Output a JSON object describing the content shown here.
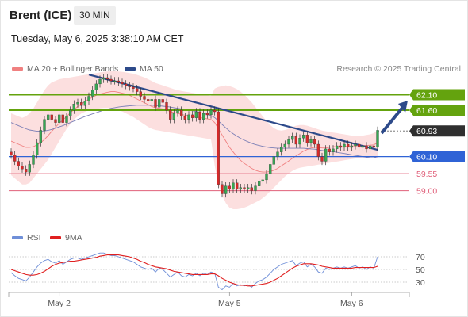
{
  "header": {
    "title": "Brent (ICE)",
    "interval": "30 MIN",
    "datetime": "Tuesday, May 6, 2025 3:38:10 AM CET"
  },
  "legend": {
    "ma20": "MA 20 + Bollinger Bands",
    "ma50": "MA 50",
    "rsi": "RSI",
    "rsi_ma": "9MA"
  },
  "copyright": "Research © 2025 Trading Central",
  "colors": {
    "bollinger_fill": "#fbd9d9",
    "ma20": "#f08080",
    "ma50": "#7b7fb6",
    "trendline": "#2d4a8a",
    "resistance": "#64a30e",
    "support_current": "#2f63d6",
    "support": "#e0607a",
    "candle_up": "#36a853",
    "candle_down": "#d42a2a",
    "price_tag": "#2f2f2f",
    "rsi": "#6f8fd8",
    "rsi_ma": "#e02020"
  },
  "chart_data": {
    "type": "candlestick",
    "instrument": "Brent (ICE)",
    "timeframe": "30 MIN",
    "x_tick_labels": [
      "May 2",
      "May 5",
      "May 6"
    ],
    "ylim": [
      58.4,
      62.6
    ],
    "price_levels": [
      {
        "label": "62.10",
        "value": 62.1,
        "kind": "resistance"
      },
      {
        "label": "61.60",
        "value": 61.6,
        "kind": "resistance"
      },
      {
        "label": "60.93",
        "value": 60.93,
        "kind": "current"
      },
      {
        "label": "60.10",
        "value": 60.1,
        "kind": "support"
      },
      {
        "label": "59.55",
        "value": 59.55,
        "kind": "support"
      },
      {
        "label": "59.00",
        "value": 59.0,
        "kind": "support"
      }
    ],
    "closes": [
      60.15,
      59.95,
      59.8,
      59.7,
      59.6,
      59.85,
      60.15,
      60.55,
      60.95,
      61.3,
      61.45,
      61.3,
      61.2,
      61.45,
      61.2,
      61.4,
      61.6,
      61.8,
      61.85,
      61.75,
      61.9,
      62.05,
      62.25,
      62.45,
      62.6,
      62.65,
      62.6,
      62.55,
      62.55,
      62.5,
      62.45,
      62.4,
      62.35,
      62.3,
      62.2,
      62.05,
      61.95,
      61.9,
      61.95,
      61.7,
      61.95,
      61.85,
      61.6,
      61.3,
      61.5,
      61.6,
      61.4,
      61.3,
      61.45,
      61.35,
      61.55,
      61.3,
      61.5,
      61.45,
      61.6,
      61.55,
      59.2,
      58.9,
      59.15,
      59.05,
      59.25,
      59.05,
      59.1,
      59.05,
      59.1,
      59.0,
      59.15,
      59.3,
      59.35,
      59.55,
      59.85,
      60.1,
      60.25,
      60.4,
      60.5,
      60.65,
      60.75,
      60.5,
      60.7,
      60.8,
      60.55,
      60.65,
      60.5,
      60.1,
      59.95,
      60.35,
      60.25,
      60.35,
      60.45,
      60.4,
      60.5,
      60.4,
      60.45,
      60.5,
      60.4,
      60.45,
      60.35,
      60.45,
      60.4,
      60.95
    ],
    "ma20": [
      60.6,
      60.55,
      60.5,
      60.45,
      60.4,
      60.4,
      60.42,
      60.48,
      60.55,
      60.65,
      60.78,
      60.92,
      61.05,
      61.18,
      61.28,
      61.4,
      61.52,
      61.62,
      61.72,
      61.8,
      61.88,
      61.95,
      62.02,
      62.08,
      62.12,
      62.15,
      62.18,
      62.2,
      62.2,
      62.18,
      62.15,
      62.12,
      62.08,
      62.02,
      61.96,
      61.9,
      61.84,
      61.78,
      61.72,
      61.68,
      61.66,
      61.64,
      61.6,
      61.56,
      61.52,
      61.5,
      61.46,
      61.44,
      61.42,
      61.4,
      61.38,
      61.36,
      61.34,
      61.32,
      61.3,
      61.2,
      61.0,
      60.8,
      60.6,
      60.4,
      60.25,
      60.1,
      59.98,
      59.88,
      59.8,
      59.72,
      59.66,
      59.62,
      59.6,
      59.6,
      59.62,
      59.66,
      59.72,
      59.8,
      59.88,
      59.96,
      60.05,
      60.12,
      60.2,
      60.28,
      60.33,
      60.38,
      60.4,
      60.4,
      60.38,
      60.38,
      60.4,
      60.42,
      60.42,
      60.42,
      60.43,
      60.44,
      60.44,
      60.45,
      60.45,
      60.46,
      60.46,
      60.47,
      60.48,
      60.55
    ],
    "ma50": [
      61.2,
      61.15,
      61.1,
      61.05,
      61.0,
      60.96,
      60.94,
      60.92,
      60.92,
      60.93,
      60.95,
      60.98,
      61.02,
      61.06,
      61.1,
      61.15,
      61.2,
      61.25,
      61.3,
      61.35,
      61.4,
      61.44,
      61.48,
      61.52,
      61.56,
      61.6,
      61.63,
      61.66,
      61.68,
      61.7,
      61.72,
      61.73,
      61.74,
      61.75,
      61.76,
      61.76,
      61.76,
      61.76,
      61.76,
      61.75,
      61.74,
      61.73,
      61.72,
      61.7,
      61.68,
      61.66,
      61.64,
      61.62,
      61.6,
      61.58,
      61.56,
      61.53,
      61.5,
      61.46,
      61.42,
      61.36,
      61.25,
      61.14,
      61.03,
      60.93,
      60.84,
      60.76,
      60.69,
      60.63,
      60.58,
      60.53,
      60.49,
      60.46,
      60.43,
      60.41,
      60.39,
      60.38,
      60.37,
      60.37,
      60.37,
      60.37,
      60.37,
      60.37,
      60.37,
      60.37,
      60.36,
      60.35,
      60.34,
      60.32,
      60.3,
      60.28,
      60.27,
      60.26,
      60.24,
      60.22,
      60.2,
      60.18,
      60.16,
      60.14,
      60.12,
      60.1,
      60.08,
      60.06,
      60.06,
      60.1
    ],
    "bollinger_upper": [
      61.5,
      61.45,
      61.4,
      61.35,
      61.4,
      61.5,
      61.65,
      61.85,
      62.05,
      62.25,
      62.4,
      62.5,
      62.55,
      62.6,
      62.62,
      62.64,
      62.66,
      62.68,
      62.7,
      62.72,
      62.74,
      62.76,
      62.78,
      62.8,
      62.82,
      62.84,
      62.85,
      62.86,
      62.86,
      62.85,
      62.84,
      62.82,
      62.8,
      62.78,
      62.74,
      62.7,
      62.66,
      62.6,
      62.54,
      62.48,
      62.44,
      62.4,
      62.36,
      62.32,
      62.28,
      62.25,
      62.22,
      62.2,
      62.18,
      62.16,
      62.14,
      62.12,
      62.1,
      62.08,
      62.06,
      62.3,
      62.35,
      62.38,
      62.4,
      62.38,
      62.34,
      62.28,
      62.2,
      62.1,
      61.98,
      61.85,
      61.7,
      61.55,
      61.4,
      61.25,
      61.12,
      61.02,
      60.96,
      60.94,
      60.96,
      61.0,
      61.06,
      61.1,
      61.12,
      61.12,
      61.1,
      61.06,
      61.02,
      60.98,
      60.94,
      60.92,
      60.9,
      60.88,
      60.86,
      60.84,
      60.82,
      60.8,
      60.78,
      60.76,
      60.76,
      60.78,
      60.8,
      60.82,
      60.86,
      60.95
    ],
    "bollinger_lower": [
      59.5,
      59.4,
      59.3,
      59.2,
      59.2,
      59.25,
      59.4,
      59.55,
      59.7,
      59.85,
      60.0,
      60.2,
      60.4,
      60.6,
      60.8,
      61.0,
      61.15,
      61.3,
      61.4,
      61.5,
      61.55,
      61.6,
      61.62,
      61.64,
      61.66,
      61.67,
      61.67,
      61.66,
      61.64,
      61.6,
      61.56,
      61.5,
      61.44,
      61.38,
      61.3,
      61.22,
      61.14,
      61.06,
      61.0,
      60.96,
      60.94,
      60.92,
      60.9,
      60.88,
      60.86,
      60.84,
      60.82,
      60.8,
      60.78,
      60.76,
      60.74,
      60.72,
      60.7,
      60.68,
      60.66,
      59.8,
      59.2,
      58.85,
      58.6,
      58.45,
      58.4,
      58.4,
      58.42,
      58.45,
      58.5,
      58.56,
      58.62,
      58.68,
      58.76,
      58.86,
      58.98,
      59.1,
      59.22,
      59.34,
      59.46,
      59.56,
      59.64,
      59.7,
      59.74,
      59.76,
      59.78,
      59.8,
      59.82,
      59.84,
      59.86,
      59.88,
      59.9,
      59.92,
      59.94,
      59.96,
      59.98,
      60.0,
      60.02,
      60.04,
      60.05,
      60.06,
      60.07,
      60.08,
      60.08,
      60.05
    ],
    "rsi_panel": {
      "levels": [
        70,
        50,
        30
      ],
      "ylim": [
        10,
        80
      ],
      "rsi": [
        45,
        40,
        36,
        34,
        32,
        38,
        46,
        54,
        60,
        64,
        66,
        62,
        60,
        64,
        58,
        62,
        66,
        68,
        68,
        66,
        68,
        70,
        72,
        74,
        76,
        76,
        74,
        72,
        72,
        70,
        68,
        66,
        64,
        62,
        58,
        54,
        52,
        50,
        52,
        46,
        52,
        50,
        44,
        38,
        42,
        46,
        40,
        38,
        42,
        40,
        44,
        40,
        44,
        42,
        46,
        44,
        22,
        18,
        24,
        22,
        28,
        24,
        26,
        24,
        26,
        22,
        28,
        32,
        34,
        38,
        44,
        50,
        54,
        58,
        60,
        62,
        64,
        56,
        60,
        62,
        54,
        58,
        54,
        46,
        44,
        52,
        50,
        52,
        54,
        52,
        54,
        52,
        54,
        56,
        52,
        54,
        50,
        54,
        52,
        70
      ],
      "ma9": [
        50,
        48,
        46,
        44,
        42,
        41,
        41,
        42,
        44,
        47,
        51,
        55,
        58,
        60,
        61,
        62,
        63,
        63,
        64,
        65,
        66,
        67,
        68,
        69,
        71,
        72,
        73,
        73,
        73,
        73,
        72,
        71,
        70,
        68,
        66,
        63,
        61,
        58,
        56,
        54,
        53,
        52,
        51,
        49,
        47,
        46,
        45,
        44,
        43,
        42,
        42,
        42,
        42,
        42,
        43,
        43,
        40,
        36,
        33,
        30,
        28,
        26,
        25,
        25,
        24,
        24,
        25,
        26,
        27,
        28,
        30,
        33,
        36,
        40,
        44,
        48,
        52,
        55,
        57,
        59,
        59,
        59,
        58,
        57,
        55,
        54,
        53,
        52,
        52,
        52,
        52,
        52,
        52,
        53,
        53,
        53,
        53,
        53,
        53,
        55
      ]
    }
  }
}
